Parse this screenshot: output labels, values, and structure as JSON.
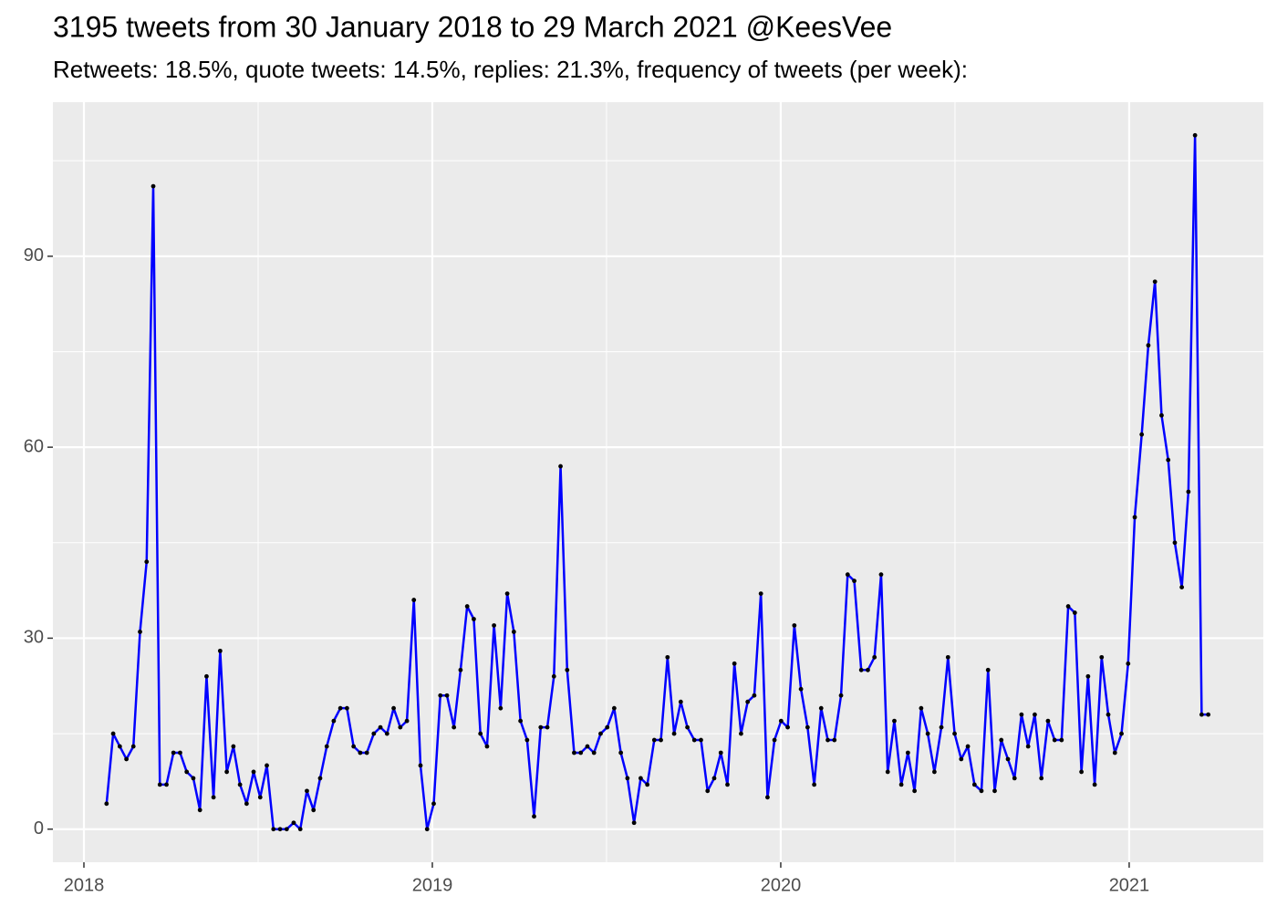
{
  "chart_data": {
    "type": "line",
    "title": "3195 tweets from 30 January 2018 to 29 March 2021 @KeesVee",
    "subtitle": "Retweets: 18.5%, quote tweets: 14.5%, replies: 21.3%, frequency of tweets (per week):",
    "x": [
      2018.065,
      2018.084,
      2018.103,
      2018.122,
      2018.142,
      2018.161,
      2018.18,
      2018.199,
      2018.218,
      2018.237,
      2018.257,
      2018.276,
      2018.295,
      2018.314,
      2018.333,
      2018.352,
      2018.372,
      2018.391,
      2018.41,
      2018.429,
      2018.448,
      2018.467,
      2018.487,
      2018.506,
      2018.525,
      2018.544,
      2018.563,
      2018.582,
      2018.602,
      2018.621,
      2018.64,
      2018.659,
      2018.678,
      2018.697,
      2018.717,
      2018.736,
      2018.755,
      2018.774,
      2018.793,
      2018.812,
      2018.832,
      2018.851,
      2018.87,
      2018.889,
      2018.908,
      2018.927,
      2018.947,
      2018.966,
      2018.985,
      2019.004,
      2019.023,
      2019.042,
      2019.062,
      2019.081,
      2019.1,
      2019.119,
      2019.138,
      2019.157,
      2019.177,
      2019.196,
      2019.215,
      2019.234,
      2019.253,
      2019.272,
      2019.292,
      2019.311,
      2019.33,
      2019.349,
      2019.368,
      2019.387,
      2019.407,
      2019.426,
      2019.445,
      2019.464,
      2019.483,
      2019.502,
      2019.522,
      2019.541,
      2019.56,
      2019.579,
      2019.598,
      2019.617,
      2019.637,
      2019.656,
      2019.675,
      2019.694,
      2019.713,
      2019.732,
      2019.752,
      2019.771,
      2019.79,
      2019.809,
      2019.828,
      2019.847,
      2019.867,
      2019.886,
      2019.905,
      2019.924,
      2019.943,
      2019.962,
      2019.982,
      2020.001,
      2020.02,
      2020.039,
      2020.058,
      2020.077,
      2020.096,
      2020.116,
      2020.135,
      2020.154,
      2020.173,
      2020.192,
      2020.211,
      2020.231,
      2020.25,
      2020.269,
      2020.288,
      2020.307,
      2020.326,
      2020.346,
      2020.365,
      2020.384,
      2020.403,
      2020.422,
      2020.441,
      2020.461,
      2020.48,
      2020.499,
      2020.518,
      2020.537,
      2020.556,
      2020.576,
      2020.595,
      2020.614,
      2020.633,
      2020.652,
      2020.671,
      2020.691,
      2020.71,
      2020.729,
      2020.748,
      2020.767,
      2020.786,
      2020.806,
      2020.825,
      2020.844,
      2020.863,
      2020.882,
      2020.901,
      2020.921,
      2020.94,
      2020.959,
      2020.978,
      2020.997,
      2021.016,
      2021.036,
      2021.055,
      2021.074,
      2021.093,
      2021.112,
      2021.131,
      2021.151,
      2021.17,
      2021.189,
      2021.208,
      2021.227
    ],
    "values": [
      4,
      15,
      13,
      11,
      13,
      31,
      42,
      101,
      7,
      7,
      12,
      12,
      9,
      8,
      3,
      24,
      5,
      28,
      9,
      13,
      7,
      4,
      9,
      5,
      10,
      0,
      0,
      0,
      1,
      0,
      6,
      3,
      8,
      13,
      17,
      19,
      19,
      13,
      12,
      12,
      15,
      16,
      15,
      19,
      16,
      17,
      36,
      10,
      0,
      4,
      21,
      21,
      16,
      25,
      35,
      33,
      15,
      13,
      32,
      19,
      37,
      31,
      17,
      14,
      2,
      16,
      16,
      24,
      57,
      25,
      12,
      12,
      13,
      12,
      15,
      16,
      19,
      12,
      8,
      1,
      8,
      7,
      14,
      14,
      27,
      15,
      20,
      16,
      14,
      14,
      6,
      8,
      12,
      7,
      26,
      15,
      20,
      21,
      37,
      5,
      14,
      17,
      16,
      32,
      22,
      16,
      7,
      19,
      14,
      14,
      21,
      40,
      39,
      25,
      25,
      27,
      40,
      9,
      17,
      7,
      12,
      6,
      19,
      15,
      9,
      16,
      27,
      15,
      11,
      13,
      7,
      6,
      25,
      6,
      14,
      11,
      8,
      18,
      13,
      18,
      8,
      17,
      14,
      14,
      35,
      34,
      9,
      24,
      7,
      27,
      18,
      12,
      15,
      26,
      49,
      62,
      76,
      86,
      65,
      58,
      45,
      38,
      53,
      109,
      18,
      18
    ],
    "color": "#0000ff",
    "point_color": "#000000",
    "xlim": [
      2017.911,
      2021.385
    ],
    "xticks": [
      2018,
      2019,
      2020,
      2021
    ],
    "ylim": [
      -5.2,
      114.2
    ],
    "yticks": [
      0,
      30,
      60,
      90
    ],
    "grid": true
  }
}
